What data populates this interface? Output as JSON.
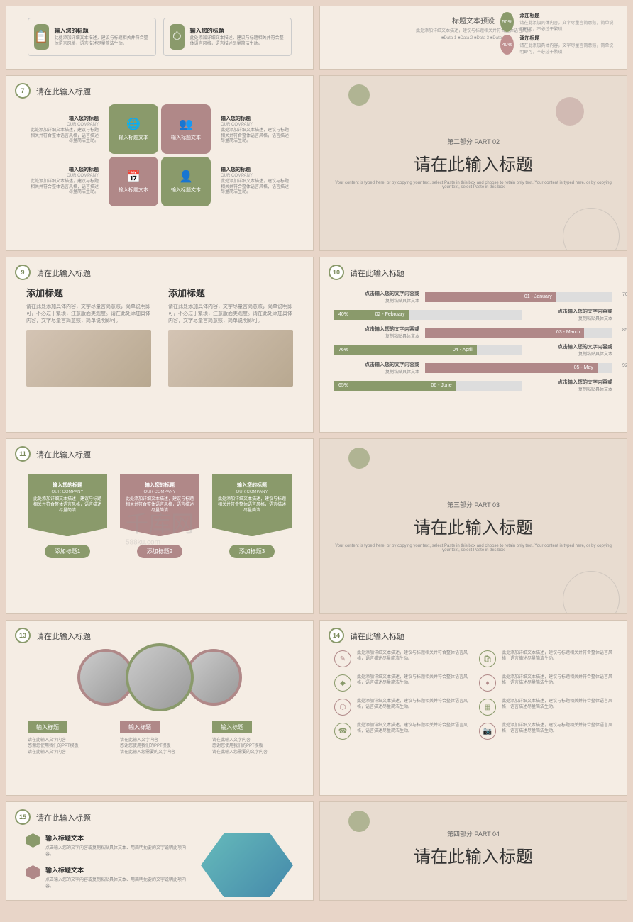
{
  "colors": {
    "green": "#8a9a6b",
    "pink": "#b08888",
    "bg": "#f5ede4",
    "body": "#e8d5c8"
  },
  "common": {
    "title_placeholder": "请在此输入标题",
    "input_title": "输入您的标题",
    "our_company": "OUR COMPANY",
    "detail_text": "此处添加详细文本描述，建议与标题相关并符合整体语言风格，语言描述尽量简洁生动。",
    "content_text": "请在此处添加具体内容，文字尽量言简意赅，简单说明即可，不必过于繁琐，注意版面美观度。"
  },
  "s5": {
    "items": [
      {
        "icon": "📋",
        "title": "输入您的标题",
        "text": "此处添加详细文本描述，建议与标题相关并符合整体语言风格，语言描述尽量简洁生动。"
      },
      {
        "icon": "⏱",
        "title": "输入您的标题",
        "text": "此处添加详细文本描述，建议与标题相关并符合整体语言风格，语言描述尽量简洁生动。"
      }
    ]
  },
  "s6": {
    "title": "标题文本预设",
    "sub": "此处添加详细文本描述，建议与标题相关并符合整体语言风格",
    "legend": "■Data 1  ■Data 2  ■Data 3  ■Data 4",
    "rows": [
      {
        "pct": "50%",
        "cls": "",
        "label": "添加标题",
        "desc": "请在此添加具体内容，文字尽量言简意赅，简单说明即可，不必过于繁琐"
      },
      {
        "pct": "40%",
        "cls": "pink",
        "label": "添加标题",
        "desc": "请在此添加具体内容，文字尽量言简意赅，简单说明即可，不必过于繁琐"
      }
    ]
  },
  "s7": {
    "num": "7",
    "cells": [
      {
        "cls": "g",
        "icon": "🌐",
        "label": "输入标题文本"
      },
      {
        "cls": "p",
        "icon": "👥",
        "label": "输入标题文本"
      },
      {
        "cls": "p",
        "icon": "📅",
        "label": "输入标题文本"
      },
      {
        "cls": "g",
        "icon": "👤",
        "label": "输入标题文本"
      }
    ]
  },
  "part2": {
    "sub": "第二部分  PART 02",
    "main": "请在此输入标题",
    "desc": "Your content is typed here, or by copying your text, select Paste in this box and choose to retain only text.\nYour content is typed here, or by copying your text, select Paste in this box"
  },
  "s9": {
    "num": "9",
    "cols": [
      {
        "title": "添加标题",
        "text": "请在此处添加具体内容，文字尽量言简意赅，简单说明即可，不必过于繁琐，注意版面美观度。请在此处添加具体内容，文字尽量言简意赅，简单说明即可。"
      },
      {
        "title": "添加标题",
        "text": "请在此处添加具体内容，文字尽量言简意赅，简单说明即可，不必过于繁琐，注意版面美观度。请在此处添加具体内容，文字尽量言简意赅，简单说明即可。"
      }
    ]
  },
  "s10": {
    "num": "10",
    "bars": [
      {
        "label": "01 - January",
        "pct": 70,
        "cls": "p",
        "side": "right",
        "text1": "点击输入您的文字内容或",
        "text2": "复制粘贴具体文本"
      },
      {
        "label": "02 - February",
        "pct": 40,
        "cls": "g",
        "side": "left",
        "text1": "点击输入您的文字内容或",
        "text2": "复制粘贴具体文本"
      },
      {
        "label": "03 - March",
        "pct": 85,
        "cls": "p",
        "side": "right",
        "text1": "点击输入您的文字内容或",
        "text2": "复制粘贴具体文本"
      },
      {
        "label": "04 - April",
        "pct": 76,
        "cls": "g",
        "side": "left",
        "text1": "点击输入您的文字内容或",
        "text2": "复制粘贴具体文本"
      },
      {
        "label": "05 - May",
        "pct": 92,
        "cls": "p",
        "side": "right",
        "text1": "点击输入您的文字内容或",
        "text2": "复制粘贴具体文本"
      },
      {
        "label": "06 - June",
        "pct": 65,
        "cls": "g",
        "side": "left",
        "text1": "点击输入您的文字内容或",
        "text2": "复制粘贴具体文本"
      }
    ]
  },
  "s11": {
    "num": "11",
    "cols": [
      {
        "cls": "g",
        "btn_cls": "",
        "title": "输入您的标题",
        "sub": "OUR COMPANY",
        "text": "此处添加详细文本描述，建议与标题相关并符合整体语言风格，语言描述尽量简洁",
        "btn": "添加标题1"
      },
      {
        "cls": "p",
        "btn_cls": "p",
        "title": "输入您的标题",
        "sub": "OUR COMPANY",
        "text": "此处添加详细文本描述，建议与标题相关并符合整体语言风格，语言描述尽量简洁",
        "btn": "添加标题2"
      },
      {
        "cls": "g",
        "btn_cls": "",
        "title": "输入您的标题",
        "sub": "OUR COMPANY",
        "text": "此处添加详细文本描述，建议与标题相关并符合整体语言风格，语言描述尽量简洁",
        "btn": "添加标题3"
      }
    ]
  },
  "part3": {
    "sub": "第三部分  PART 03",
    "main": "请在此输入标题",
    "desc": "Your content is typed here, or by copying your text, select Paste in this box and choose to retain only text.\nYour content is typed here, or by copying your text, select Paste in this box"
  },
  "s13": {
    "num": "13",
    "labels": [
      {
        "cls": "",
        "tag": "输入标题",
        "text": "请在此输入文字内容\n感谢您使用我们的PPT模板\n请在此输入文字内容"
      },
      {
        "cls": "p",
        "tag": "输入标题",
        "text": "请在此输入文字内容\n感谢您使用我们的PPT模板\n请在此输入您需要的文字内容"
      },
      {
        "cls": "",
        "tag": "输入标题",
        "text": "请在此输入文字内容\n感谢您使用我们的PPT模板\n请在此输入您需要的文字内容"
      }
    ]
  },
  "s14": {
    "num": "14",
    "items": [
      {
        "cls": "p",
        "icon": "✎",
        "text": "此处添加详细文本描述，建议与标题相关并符合整体语言风格，语言描述尽量简洁生动。"
      },
      {
        "cls": "g",
        "icon": "🛍",
        "text": "此处添加详细文本描述，建议与标题相关并符合整体语言风格，语言描述尽量简洁生动。"
      },
      {
        "cls": "g",
        "icon": "◆",
        "text": "此处添加详细文本描述，建议与标题相关并符合整体语言风格，语言描述尽量简洁生动。"
      },
      {
        "cls": "p",
        "icon": "♦",
        "text": "此处添加详细文本描述，建议与标题相关并符合整体语言风格，语言描述尽量简洁生动。"
      },
      {
        "cls": "p",
        "icon": "⬡",
        "text": "此处添加详细文本描述，建议与标题相关并符合整体语言风格，语言描述尽量简洁生动。"
      },
      {
        "cls": "g",
        "icon": "▦",
        "text": "此处添加详细文本描述，建议与标题相关并符合整体语言风格，语言描述尽量简洁生动。"
      },
      {
        "cls": "g",
        "icon": "☎",
        "text": "此处添加详细文本描述，建议与标题相关并符合整体语言风格，语言描述尽量简洁生动。"
      },
      {
        "cls": "p",
        "icon": "📷",
        "text": "此处添加详细文本描述，建议与标题相关并符合整体语言风格，语言描述尽量简洁生动。"
      }
    ]
  },
  "s15": {
    "num": "15",
    "rows": [
      {
        "cls": "",
        "title": "输入标题文本",
        "text": "点击输入您的文字内容或复制粘贴具体文本、用简明扼要的文字说明此项内容。"
      },
      {
        "cls": "p",
        "title": "输入标题文本",
        "text": "点击输入您的文字内容或复制粘贴具体文本、用简明扼要的文字说明此项内容。"
      }
    ]
  },
  "part4": {
    "sub": "第四部分  PART 04",
    "main": "请在此输入标题"
  },
  "watermark": "千库网",
  "watermark_url": "588ku.com"
}
